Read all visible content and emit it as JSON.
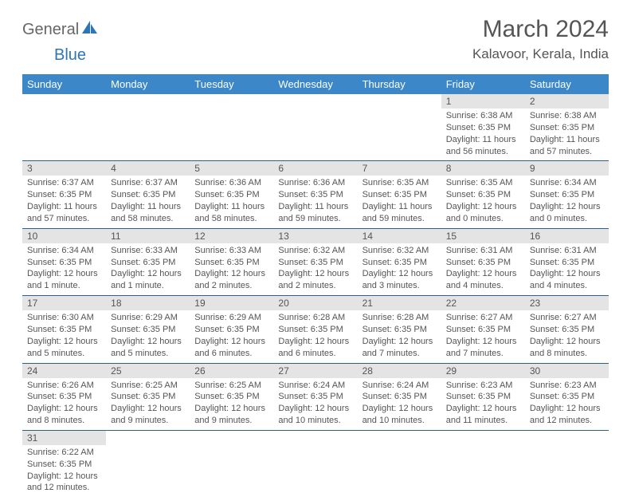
{
  "logo": {
    "text1": "General",
    "text2": "Blue"
  },
  "title": "March 2024",
  "location": "Kalavoor, Kerala, India",
  "colors": {
    "header_bg": "#3b87c8",
    "header_text": "#ffffff",
    "daynum_bg": "#e4e4e4",
    "border": "#2e5f8f",
    "text": "#555555",
    "logo_gray": "#666666",
    "logo_blue": "#2e75b6",
    "page_bg": "#ffffff"
  },
  "day_headers": [
    "Sunday",
    "Monday",
    "Tuesday",
    "Wednesday",
    "Thursday",
    "Friday",
    "Saturday"
  ],
  "weeks": [
    [
      null,
      null,
      null,
      null,
      null,
      {
        "n": "1",
        "sr": "6:38 AM",
        "ss": "6:35 PM",
        "dl": "11 hours and 56 minutes."
      },
      {
        "n": "2",
        "sr": "6:38 AM",
        "ss": "6:35 PM",
        "dl": "11 hours and 57 minutes."
      }
    ],
    [
      {
        "n": "3",
        "sr": "6:37 AM",
        "ss": "6:35 PM",
        "dl": "11 hours and 57 minutes."
      },
      {
        "n": "4",
        "sr": "6:37 AM",
        "ss": "6:35 PM",
        "dl": "11 hours and 58 minutes."
      },
      {
        "n": "5",
        "sr": "6:36 AM",
        "ss": "6:35 PM",
        "dl": "11 hours and 58 minutes."
      },
      {
        "n": "6",
        "sr": "6:36 AM",
        "ss": "6:35 PM",
        "dl": "11 hours and 59 minutes."
      },
      {
        "n": "7",
        "sr": "6:35 AM",
        "ss": "6:35 PM",
        "dl": "11 hours and 59 minutes."
      },
      {
        "n": "8",
        "sr": "6:35 AM",
        "ss": "6:35 PM",
        "dl": "12 hours and 0 minutes."
      },
      {
        "n": "9",
        "sr": "6:34 AM",
        "ss": "6:35 PM",
        "dl": "12 hours and 0 minutes."
      }
    ],
    [
      {
        "n": "10",
        "sr": "6:34 AM",
        "ss": "6:35 PM",
        "dl": "12 hours and 1 minute."
      },
      {
        "n": "11",
        "sr": "6:33 AM",
        "ss": "6:35 PM",
        "dl": "12 hours and 1 minute."
      },
      {
        "n": "12",
        "sr": "6:33 AM",
        "ss": "6:35 PM",
        "dl": "12 hours and 2 minutes."
      },
      {
        "n": "13",
        "sr": "6:32 AM",
        "ss": "6:35 PM",
        "dl": "12 hours and 2 minutes."
      },
      {
        "n": "14",
        "sr": "6:32 AM",
        "ss": "6:35 PM",
        "dl": "12 hours and 3 minutes."
      },
      {
        "n": "15",
        "sr": "6:31 AM",
        "ss": "6:35 PM",
        "dl": "12 hours and 4 minutes."
      },
      {
        "n": "16",
        "sr": "6:31 AM",
        "ss": "6:35 PM",
        "dl": "12 hours and 4 minutes."
      }
    ],
    [
      {
        "n": "17",
        "sr": "6:30 AM",
        "ss": "6:35 PM",
        "dl": "12 hours and 5 minutes."
      },
      {
        "n": "18",
        "sr": "6:29 AM",
        "ss": "6:35 PM",
        "dl": "12 hours and 5 minutes."
      },
      {
        "n": "19",
        "sr": "6:29 AM",
        "ss": "6:35 PM",
        "dl": "12 hours and 6 minutes."
      },
      {
        "n": "20",
        "sr": "6:28 AM",
        "ss": "6:35 PM",
        "dl": "12 hours and 6 minutes."
      },
      {
        "n": "21",
        "sr": "6:28 AM",
        "ss": "6:35 PM",
        "dl": "12 hours and 7 minutes."
      },
      {
        "n": "22",
        "sr": "6:27 AM",
        "ss": "6:35 PM",
        "dl": "12 hours and 7 minutes."
      },
      {
        "n": "23",
        "sr": "6:27 AM",
        "ss": "6:35 PM",
        "dl": "12 hours and 8 minutes."
      }
    ],
    [
      {
        "n": "24",
        "sr": "6:26 AM",
        "ss": "6:35 PM",
        "dl": "12 hours and 8 minutes."
      },
      {
        "n": "25",
        "sr": "6:25 AM",
        "ss": "6:35 PM",
        "dl": "12 hours and 9 minutes."
      },
      {
        "n": "26",
        "sr": "6:25 AM",
        "ss": "6:35 PM",
        "dl": "12 hours and 9 minutes."
      },
      {
        "n": "27",
        "sr": "6:24 AM",
        "ss": "6:35 PM",
        "dl": "12 hours and 10 minutes."
      },
      {
        "n": "28",
        "sr": "6:24 AM",
        "ss": "6:35 PM",
        "dl": "12 hours and 10 minutes."
      },
      {
        "n": "29",
        "sr": "6:23 AM",
        "ss": "6:35 PM",
        "dl": "12 hours and 11 minutes."
      },
      {
        "n": "30",
        "sr": "6:23 AM",
        "ss": "6:35 PM",
        "dl": "12 hours and 12 minutes."
      }
    ],
    [
      {
        "n": "31",
        "sr": "6:22 AM",
        "ss": "6:35 PM",
        "dl": "12 hours and 12 minutes."
      },
      null,
      null,
      null,
      null,
      null,
      null
    ]
  ],
  "labels": {
    "sunrise": "Sunrise:",
    "sunset": "Sunset:",
    "daylight": "Daylight:"
  }
}
